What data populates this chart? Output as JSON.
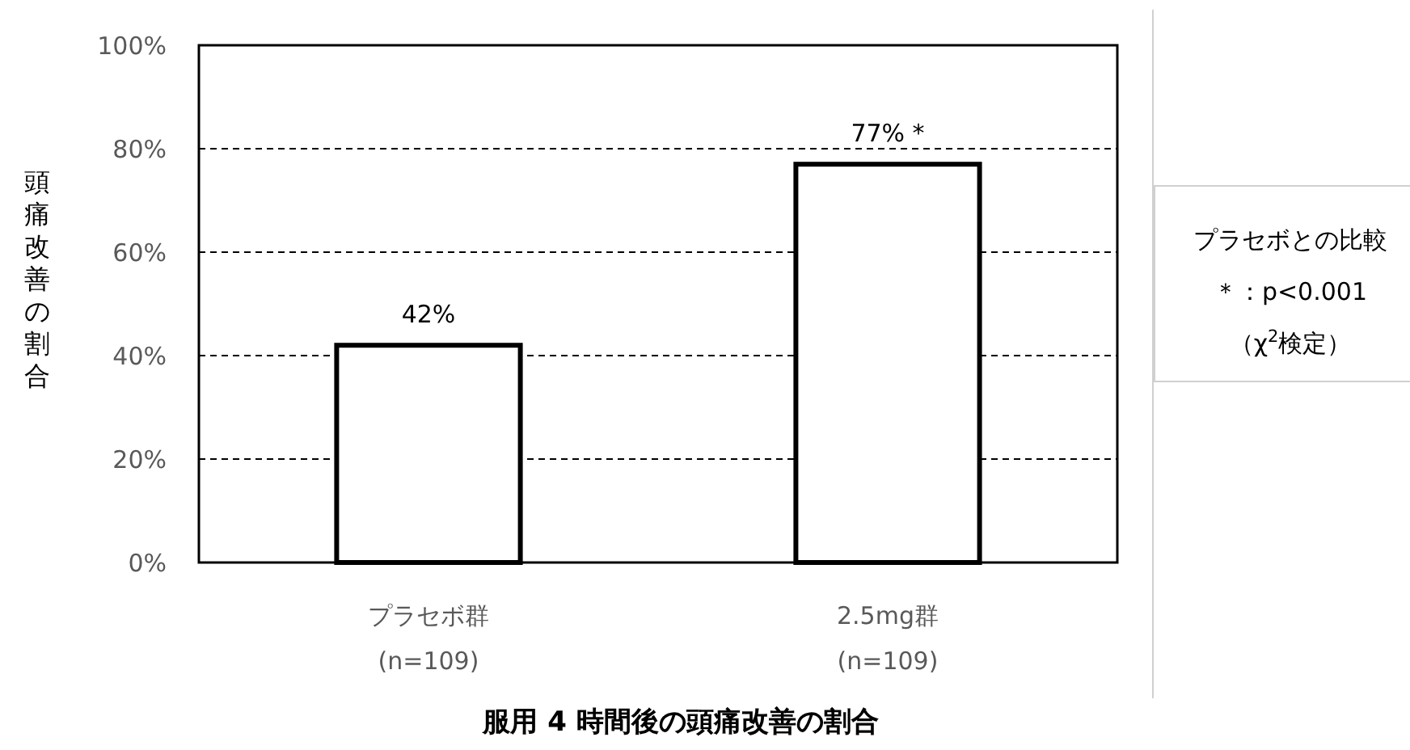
{
  "chart_data": {
    "type": "bar",
    "title": "服用 4 時間後の頭痛改善の割合",
    "ylabel": "頭痛改善の割合",
    "categories": [
      "プラセボ群\n(n=109)",
      "2.5mg群\n(n=109)"
    ],
    "values": [
      42,
      77
    ],
    "color": "#ffffff",
    "value_labels": [
      "42%",
      "77% *"
    ],
    "ylim": [
      0,
      100
    ],
    "yticks": [
      {
        "value": 0,
        "label": "0%"
      },
      {
        "value": 20,
        "label": "20%"
      },
      {
        "value": 40,
        "label": "40%"
      },
      {
        "value": 60,
        "label": "60%"
      },
      {
        "value": 80,
        "label": "80%"
      },
      {
        "value": 100,
        "label": "100%"
      }
    ],
    "grid": "y",
    "line_style": "dashed",
    "annotations": [
      "プラセボとの比較",
      "＊：p<0.001",
      "（χ$^{2}$検定）"
    ]
  }
}
